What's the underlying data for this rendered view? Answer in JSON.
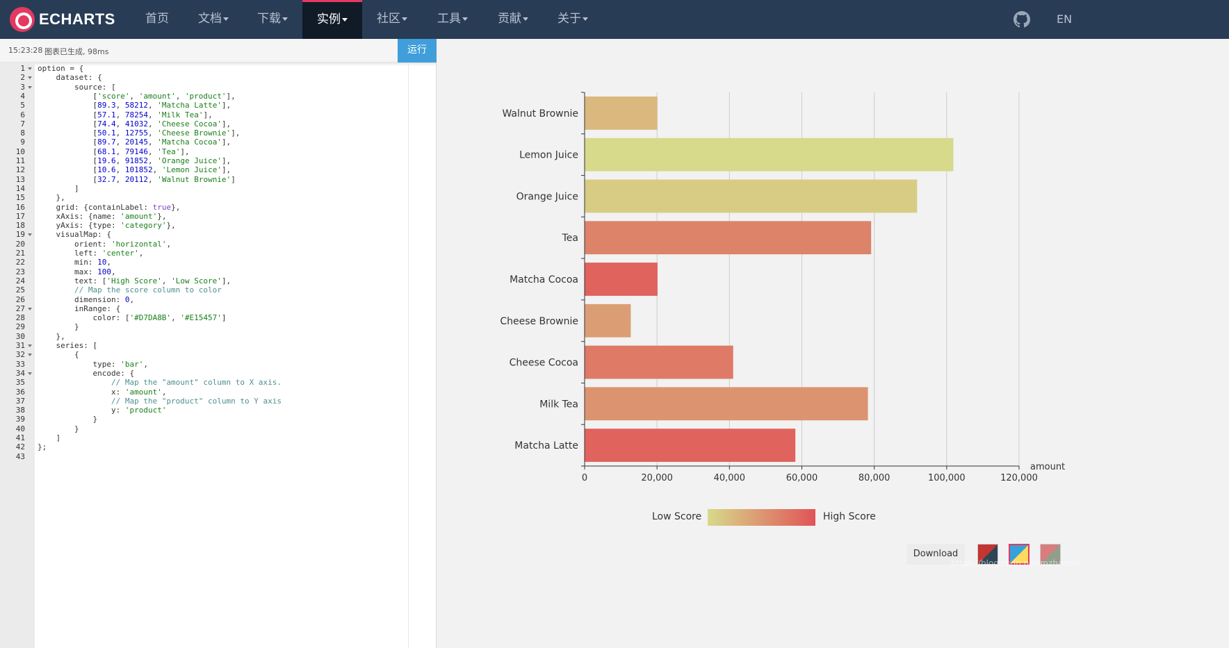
{
  "nav": {
    "logo_text": "ECHARTS",
    "items": [
      {
        "label": "首页",
        "caret": false
      },
      {
        "label": "文档",
        "caret": true
      },
      {
        "label": "下载",
        "caret": true
      },
      {
        "label": "实例",
        "caret": true,
        "active": true
      },
      {
        "label": "社区",
        "caret": true
      },
      {
        "label": "工具",
        "caret": true
      },
      {
        "label": "贡献",
        "caret": true
      },
      {
        "label": "关于",
        "caret": true
      }
    ],
    "lang": "EN"
  },
  "status": {
    "time": "15:23:28",
    "message": "图表已生成, 98ms",
    "run_label": "运行"
  },
  "code_lines": [
    "option = {",
    "    dataset: {",
    "        source: [",
    "            ['score', 'amount', 'product'],",
    "            [89.3, 58212, 'Matcha Latte'],",
    "            [57.1, 78254, 'Milk Tea'],",
    "            [74.4, 41032, 'Cheese Cocoa'],",
    "            [50.1, 12755, 'Cheese Brownie'],",
    "            [89.7, 20145, 'Matcha Cocoa'],",
    "            [68.1, 79146, 'Tea'],",
    "            [19.6, 91852, 'Orange Juice'],",
    "            [10.6, 101852, 'Lemon Juice'],",
    "            [32.7, 20112, 'Walnut Brownie']",
    "        ]",
    "    },",
    "    grid: {containLabel: true},",
    "    xAxis: {name: 'amount'},",
    "    yAxis: {type: 'category'},",
    "    visualMap: {",
    "        orient: 'horizontal',",
    "        left: 'center',",
    "        min: 10,",
    "        max: 100,",
    "        text: ['High Score', 'Low Score'],",
    "        // Map the score column to color",
    "        dimension: 0,",
    "        inRange: {",
    "            color: ['#D7DA8B', '#E15457']",
    "        }",
    "    },",
    "    series: [",
    "        {",
    "            type: 'bar',",
    "            encode: {",
    "                // Map the \"amount\" column to X axis.",
    "                x: 'amount',",
    "                // Map the \"product\" column to Y axis",
    "                y: 'product'",
    "            }",
    "        }",
    "    ]",
    "};",
    ""
  ],
  "fold_lines": [
    1,
    2,
    3,
    19,
    27,
    31,
    32,
    34
  ],
  "chart_data": {
    "type": "bar",
    "orientation": "horizontal",
    "categories": [
      "Matcha Latte",
      "Milk Tea",
      "Cheese Cocoa",
      "Cheese Brownie",
      "Matcha Cocoa",
      "Tea",
      "Orange Juice",
      "Lemon Juice",
      "Walnut Brownie"
    ],
    "values": [
      58212,
      78254,
      41032,
      12755,
      20145,
      79146,
      91852,
      101852,
      20112
    ],
    "scores": [
      89.3,
      57.1,
      74.4,
      50.1,
      89.7,
      68.1,
      19.6,
      10.6,
      32.7
    ],
    "xlabel": "amount",
    "xlim": [
      0,
      120000
    ],
    "xticks": [
      0,
      20000,
      40000,
      60000,
      80000,
      100000,
      120000
    ],
    "xtick_labels": [
      "0",
      "20,000",
      "40,000",
      "60,000",
      "80,000",
      "100,000",
      "120,000"
    ],
    "visual_map": {
      "min": 10,
      "max": 100,
      "low_text": "Low Score",
      "high_text": "High Score",
      "colors": [
        "#D7DA8B",
        "#E15457"
      ]
    }
  },
  "download_label": "Download",
  "themes": [
    {
      "name": "dark-theme",
      "colors": [
        "#c23531",
        "#2f4554"
      ]
    },
    {
      "name": "light-theme",
      "colors": [
        "#37a2da",
        "#ffdb5c"
      ]
    },
    {
      "name": "vintage-theme",
      "colors": [
        "#d87c7c",
        "#919e8b"
      ]
    }
  ],
  "watermark": "https://blog.csdn.net/mzhaobin"
}
